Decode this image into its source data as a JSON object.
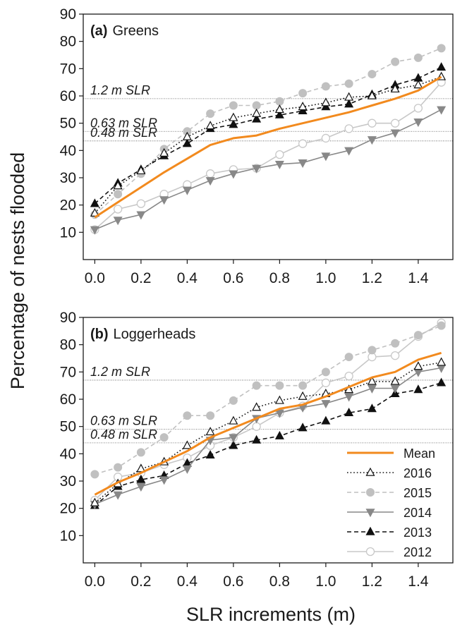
{
  "ylabel": "Percentage of nests flooded",
  "xlabel": "SLR increments (m)",
  "chart_data": [
    {
      "type": "line",
      "panel_letter": "(a)",
      "title": "Greens",
      "x": [
        0.0,
        0.1,
        0.2,
        0.3,
        0.4,
        0.5,
        0.6,
        0.7,
        0.8,
        0.9,
        1.0,
        1.1,
        1.2,
        1.3,
        1.4,
        1.5
      ],
      "xlim": [
        -0.05,
        1.55
      ],
      "ylim": [
        0,
        90
      ],
      "xticks": [
        0.0,
        0.2,
        0.4,
        0.6,
        0.8,
        1.0,
        1.2,
        1.4
      ],
      "xtick_labels": [
        "0.0",
        "0.2",
        "0.4",
        "0.6",
        "0.8",
        "1.0",
        "1.2",
        "1.4"
      ],
      "yticks": [
        10,
        20,
        30,
        40,
        50,
        60,
        70,
        80,
        90
      ],
      "ytick_labels": [
        "10",
        "20",
        "30",
        "40",
        "50",
        "60",
        "70",
        "80",
        "90"
      ],
      "reference_lines": [
        {
          "label": "1.2 m SLR",
          "y": 59
        },
        {
          "label": "0.63 m SLR",
          "y": 47
        },
        {
          "label": "0.48 m SLR",
          "y": 43.5
        }
      ],
      "series": [
        {
          "name": "2012",
          "values": [
            11,
            18.5,
            20.5,
            24,
            27.5,
            31.5,
            33,
            33.5,
            38.5,
            42.5,
            44.5,
            48,
            50,
            50,
            55.5,
            65
          ],
          "color": "#c8c8c8",
          "dash": "solid",
          "marker": "circle-open"
        },
        {
          "name": "2013",
          "values": [
            20.5,
            28,
            33,
            38,
            42.5,
            48,
            49.5,
            51.5,
            53,
            54.5,
            56,
            57,
            60.5,
            64,
            66.5,
            70.5
          ],
          "color": "#111111",
          "dash": "dashed",
          "marker": "triangle-up-filled"
        },
        {
          "name": "2014",
          "values": [
            11,
            14.5,
            16.5,
            22,
            25.5,
            29,
            31.5,
            33.5,
            35,
            35.5,
            38,
            40,
            44,
            46.5,
            50.5,
            55
          ],
          "color": "#888888",
          "dash": "solid",
          "marker": "triangle-down-filled"
        },
        {
          "name": "2015",
          "values": [
            16.5,
            24,
            31.5,
            40.5,
            47,
            53.5,
            56.5,
            56.5,
            58,
            61,
            63.5,
            64.5,
            68,
            72.5,
            74,
            77.5
          ],
          "color": "#c0c0c0",
          "dash": "dashed",
          "marker": "circle-filled"
        },
        {
          "name": "2016",
          "values": [
            17,
            27,
            32.5,
            39,
            45,
            49,
            52,
            53.5,
            55,
            56,
            57.5,
            59.5,
            60,
            62.5,
            64,
            67
          ],
          "color": "#111111",
          "dash": "dotted",
          "marker": "triangle-up-open"
        },
        {
          "name": "Mean",
          "values": [
            15.5,
            21,
            26.5,
            32,
            37,
            42,
            44.5,
            45.5,
            48,
            50,
            52,
            54,
            56.5,
            59,
            62,
            67
          ],
          "color": "#f28a1e",
          "dash": "solid",
          "marker": "none"
        }
      ]
    },
    {
      "type": "line",
      "panel_letter": "(b)",
      "title": "Loggerheads",
      "x": [
        0.0,
        0.1,
        0.2,
        0.3,
        0.4,
        0.5,
        0.6,
        0.7,
        0.8,
        0.9,
        1.0,
        1.1,
        1.2,
        1.3,
        1.4,
        1.5
      ],
      "xlim": [
        -0.05,
        1.55
      ],
      "ylim": [
        0,
        90
      ],
      "xticks": [
        0.0,
        0.2,
        0.4,
        0.6,
        0.8,
        1.0,
        1.2,
        1.4
      ],
      "xtick_labels": [
        "0.0",
        "0.2",
        "0.4",
        "0.6",
        "0.8",
        "1.0",
        "1.2",
        "1.4"
      ],
      "yticks": [
        10,
        20,
        30,
        40,
        50,
        60,
        70,
        80,
        90
      ],
      "ytick_labels": [
        "10",
        "20",
        "30",
        "40",
        "50",
        "60",
        "70",
        "80",
        "90"
      ],
      "reference_lines": [
        {
          "label": "1.2 m SLR",
          "y": 67
        },
        {
          "label": "0.63 m SLR",
          "y": 49
        },
        {
          "label": "0.48 m SLR",
          "y": 44
        }
      ],
      "series": [
        {
          "name": "2012",
          "values": [
            23,
            31.5,
            33,
            36,
            38.5,
            43,
            46,
            50,
            55,
            57.5,
            66,
            68.5,
            75.5,
            76,
            83,
            88
          ],
          "color": "#c8c8c8",
          "dash": "solid",
          "marker": "circle-open"
        },
        {
          "name": "2013",
          "values": [
            21,
            28,
            30.5,
            32,
            36.5,
            39.5,
            43,
            45,
            46.5,
            49.5,
            52,
            55,
            56.5,
            62,
            63.5,
            66
          ],
          "color": "#111111",
          "dash": "dashed",
          "marker": "triangle-up-filled"
        },
        {
          "name": "2014",
          "values": [
            21.5,
            25,
            28,
            30.5,
            34.5,
            45,
            46,
            53,
            55,
            57,
            58.5,
            61,
            64,
            64,
            70,
            71.5
          ],
          "color": "#888888",
          "dash": "solid",
          "marker": "triangle-down-filled"
        },
        {
          "name": "2015",
          "values": [
            32.5,
            35,
            40.5,
            46,
            54,
            54,
            59.5,
            65,
            65,
            65,
            70,
            75.5,
            78,
            80.5,
            83.5,
            87
          ],
          "color": "#c0c0c0",
          "dash": "dashed",
          "marker": "circle-filled"
        },
        {
          "name": "2016",
          "values": [
            22,
            29,
            34.5,
            37,
            43,
            48,
            52,
            57,
            59.5,
            61,
            62,
            63.5,
            66.5,
            66.5,
            72,
            73.5
          ],
          "color": "#111111",
          "dash": "dotted",
          "marker": "triangle-up-open"
        },
        {
          "name": "Mean",
          "values": [
            25,
            29.5,
            33,
            37,
            41,
            46,
            49.5,
            53,
            56.5,
            58,
            61,
            64.5,
            68,
            70,
            74.5,
            77
          ],
          "color": "#f28a1e",
          "dash": "solid",
          "marker": "none"
        }
      ]
    }
  ],
  "legend": {
    "placement": "bottom-right of panel (b)",
    "order": [
      "Mean",
      "2016",
      "2015",
      "2014",
      "2013",
      "2012"
    ]
  }
}
